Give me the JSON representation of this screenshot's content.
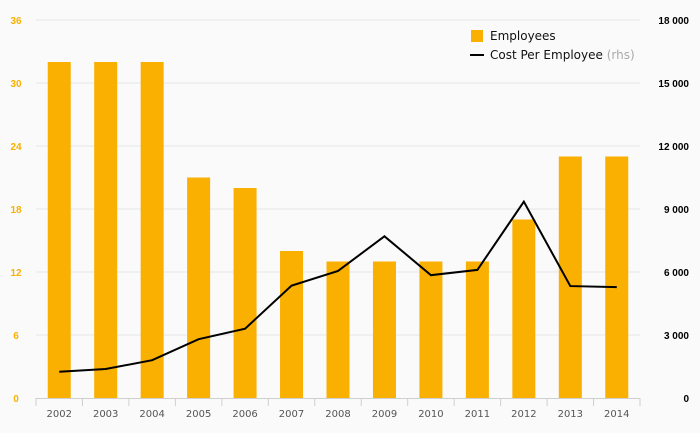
{
  "colors": {
    "bar": "#f9b000",
    "line": "#000000",
    "left_axis_text": "#f9b000",
    "grid": "#e6e6e6",
    "background": "#fafafa"
  },
  "chart_data": {
    "type": "bar+line",
    "categories": [
      "2002",
      "2003",
      "2004",
      "2005",
      "2006",
      "2007",
      "2008",
      "2009",
      "2010",
      "2011",
      "2012",
      "2013",
      "2014"
    ],
    "series": [
      {
        "name": "Employees",
        "type": "bar",
        "axis": "left",
        "values": [
          32,
          32,
          32,
          21,
          20,
          14,
          13,
          13,
          13,
          13,
          17,
          23,
          23
        ]
      },
      {
        "name": "Cost Per Employee",
        "name_suffix": "(rhs)",
        "type": "line",
        "axis": "right",
        "values": [
          1250,
          1380,
          1800,
          2800,
          3300,
          5350,
          6050,
          7700,
          5850,
          6100,
          9350,
          5330,
          5280
        ]
      }
    ],
    "y_left": {
      "min": 0,
      "max": 36,
      "ticks": [
        "0",
        "6",
        "12",
        "18",
        "24",
        "30",
        "36"
      ],
      "tick_values": [
        0,
        6,
        12,
        18,
        24,
        30,
        36
      ]
    },
    "y_right": {
      "min": 0,
      "max": 18000,
      "ticks": [
        "0",
        "3 000",
        "6 000",
        "9 000",
        "12 000",
        "15 000",
        "18 000"
      ],
      "tick_values": [
        0,
        3000,
        6000,
        9000,
        12000,
        15000,
        18000
      ]
    },
    "grid": true,
    "legend_position": "top-right"
  }
}
